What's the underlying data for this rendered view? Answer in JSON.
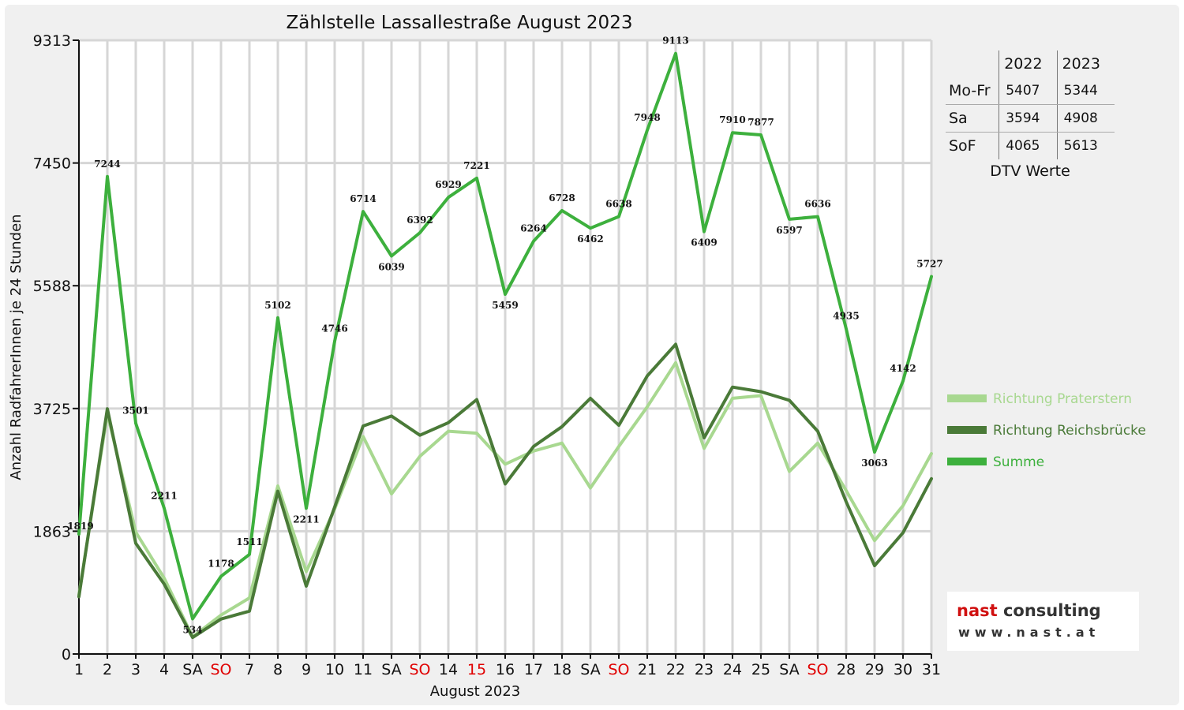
{
  "chart_data": {
    "type": "line",
    "title": "Zählstelle Lassallestraße August 2023",
    "xlabel": "August 2023",
    "ylabel": "Anzahl RadfahrerInnen je 24 Stunden",
    "ylim": [
      0,
      9313
    ],
    "yticks": [
      "0",
      "1863",
      "3725",
      "5588",
      "7450",
      "9313"
    ],
    "yticks_values": [
      0,
      1863,
      3725,
      5588,
      7450,
      9313
    ],
    "categories": [
      "1",
      "2",
      "3",
      "4",
      "SA",
      "SO",
      "7",
      "8",
      "9",
      "10",
      "11",
      "SA",
      "SO",
      "14",
      "15",
      "16",
      "17",
      "18",
      "SA",
      "SO",
      "21",
      "22",
      "23",
      "24",
      "25",
      "SA",
      "SO",
      "28",
      "29",
      "30",
      "31"
    ],
    "highlight_categories": [
      "SO",
      "15"
    ],
    "grid": true,
    "legend_position": "right",
    "series": [
      {
        "name": "Richtung Praterstern",
        "color": "#a8d890",
        "values": [
          900,
          3650,
          1850,
          1150,
          260,
          590,
          850,
          2550,
          1250,
          2200,
          3300,
          2430,
          3000,
          3380,
          3350,
          2880,
          3080,
          3200,
          2520,
          3150,
          3750,
          4420,
          3120,
          3880,
          3920,
          2770,
          3200,
          2480,
          1720,
          2250,
          3040
        ]
      },
      {
        "name": "Richtung Reichsbrücke",
        "color": "#4a7a38",
        "values": [
          870,
          3720,
          1680,
          1060,
          250,
          530,
          650,
          2470,
          1030,
          2230,
          3460,
          3610,
          3320,
          3510,
          3860,
          2580,
          3150,
          3450,
          3880,
          3470,
          4220,
          4700,
          3280,
          4050,
          3980,
          3850,
          3380,
          2310,
          1340,
          1840,
          2660
        ]
      },
      {
        "name": "Summe",
        "color": "#3db03d",
        "values": [
          1819,
          7244,
          3501,
          2211,
          534,
          1178,
          1511,
          5102,
          2211,
          4746,
          6714,
          6039,
          6392,
          6929,
          7221,
          5459,
          6264,
          6728,
          6462,
          6638,
          7948,
          9113,
          6409,
          7910,
          7877,
          6597,
          6636,
          4935,
          3063,
          4142,
          5727
        ],
        "labels": [
          "1819",
          "7244",
          "3501",
          "2211",
          "534",
          "1178",
          "1511",
          "5102",
          "2211",
          "4746",
          "6714",
          "6039",
          "6392",
          "6929",
          "7221",
          "5459",
          "6264",
          "6728",
          "6462",
          "6638",
          "7948",
          "9113",
          "6409",
          "7910",
          "7877",
          "6597",
          "6636",
          "4935",
          "3063",
          "4142",
          "5727"
        ]
      }
    ]
  },
  "dtv_table": {
    "headers": [
      "2022",
      "2023"
    ],
    "rows": [
      {
        "label": "Mo-Fr",
        "v2022": "5407",
        "v2023": "5344"
      },
      {
        "label": "Sa",
        "v2022": "3594",
        "v2023": "4908"
      },
      {
        "label": "SoF",
        "v2022": "4065",
        "v2023": "5613"
      }
    ],
    "caption": "DTV Werte"
  },
  "logo": {
    "name_a": "nast",
    "name_b": " consulting",
    "url": "www.nast.at"
  },
  "colors": {
    "holiday_tick": "#e00000",
    "normal_tick": "#111111",
    "grid": "#d6d6d6",
    "background": "#f0f0f0"
  }
}
